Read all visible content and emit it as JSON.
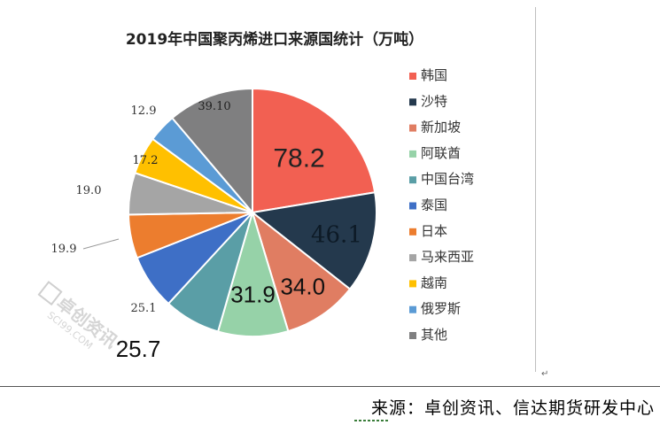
{
  "chart_data": {
    "type": "pie",
    "title": "2019年中国聚丙烯进口来源国统计（万吨）",
    "slices": [
      {
        "label": "韩国",
        "value": 78.2,
        "display": "78.2",
        "color": "#f26052"
      },
      {
        "label": "沙特",
        "value": 46.1,
        "display": "46.1",
        "color": "#24394d"
      },
      {
        "label": "新加坡",
        "value": 34.0,
        "display": "34.0",
        "color": "#e07d62"
      },
      {
        "label": "阿联酋",
        "value": 31.9,
        "display": "31.9",
        "color": "#96d2a8"
      },
      {
        "label": "中国台湾",
        "value": 25.7,
        "display": "25.7",
        "color": "#5a9ea6"
      },
      {
        "label": "泰国",
        "value": 25.1,
        "display": "25.1",
        "color": "#3e6fc6"
      },
      {
        "label": "日本",
        "value": 19.9,
        "display": "19.9",
        "color": "#ec7d2e"
      },
      {
        "label": "马来西亚",
        "value": 19.0,
        "display": "19.0",
        "color": "#a5a5a5"
      },
      {
        "label": "越南",
        "value": 17.2,
        "display": "17.2",
        "color": "#ffc000"
      },
      {
        "label": "俄罗斯",
        "value": 12.9,
        "display": "12.9",
        "color": "#5b9bd5"
      },
      {
        "label": "其他",
        "value": 39.1,
        "display": "39.10",
        "color": "#7f7f80"
      }
    ],
    "legend_position": "right"
  },
  "watermark": {
    "brand": "卓创资讯",
    "site": "SCI99.COM"
  },
  "source_text": "来源：卓创资讯、信达期货研发中心",
  "para_mark": "↵"
}
